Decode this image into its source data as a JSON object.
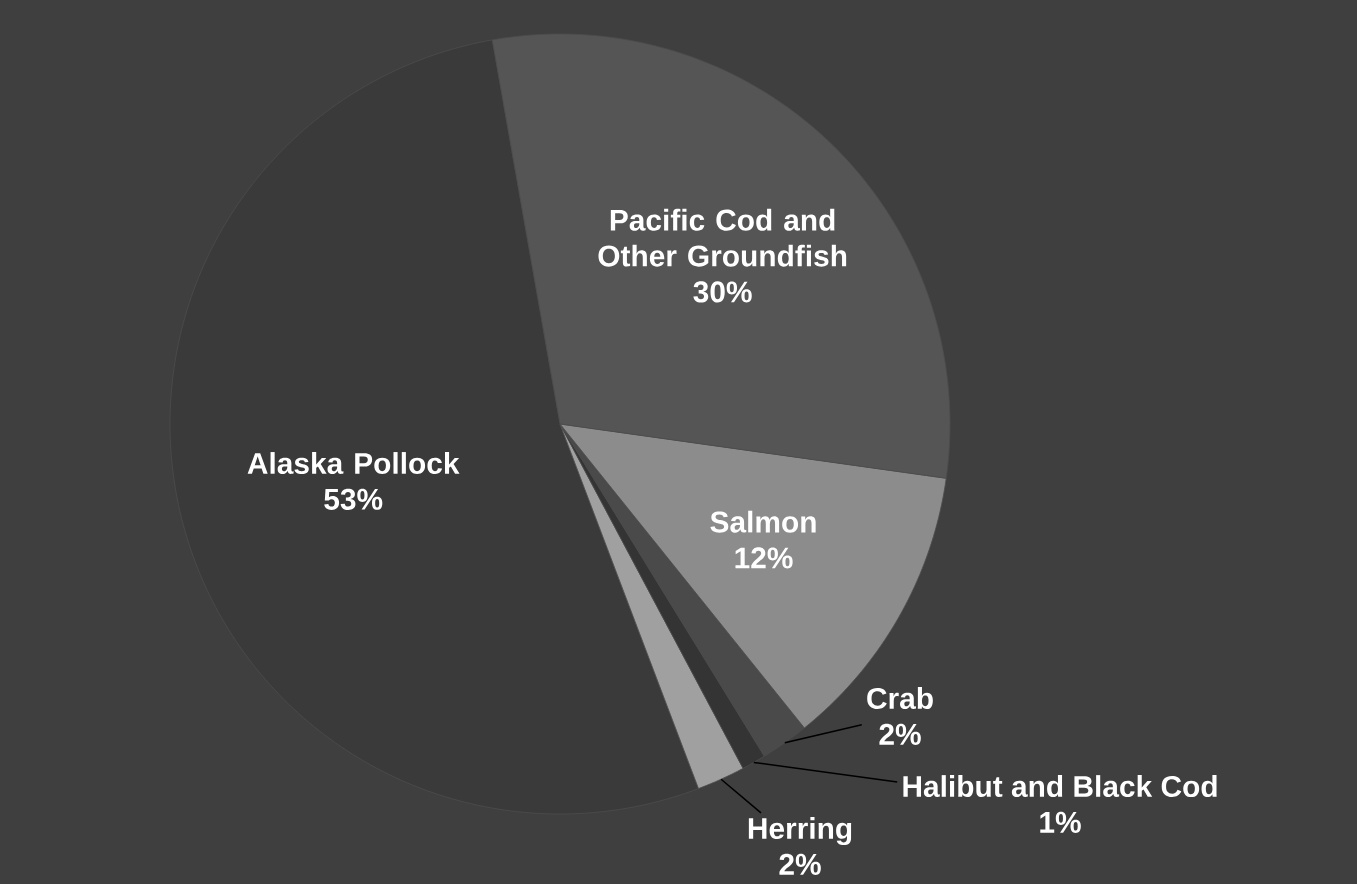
{
  "chart_data": {
    "type": "pie",
    "categories": [
      "Alaska Pollock",
      "Herring",
      "Halibut and Black Cod",
      "Crab",
      "Salmon",
      "Pacific Cod and Other Groundfish"
    ],
    "values": [
      53,
      2,
      1,
      2,
      12,
      30
    ],
    "value_labels": [
      "53%",
      "2%",
      "1%",
      "2%",
      "12%",
      "30%"
    ],
    "colors": [
      "#3a3a3a",
      "#a0a0a0",
      "#343434",
      "#4a4a4a",
      "#8c8c8c",
      "#555555"
    ]
  }
}
